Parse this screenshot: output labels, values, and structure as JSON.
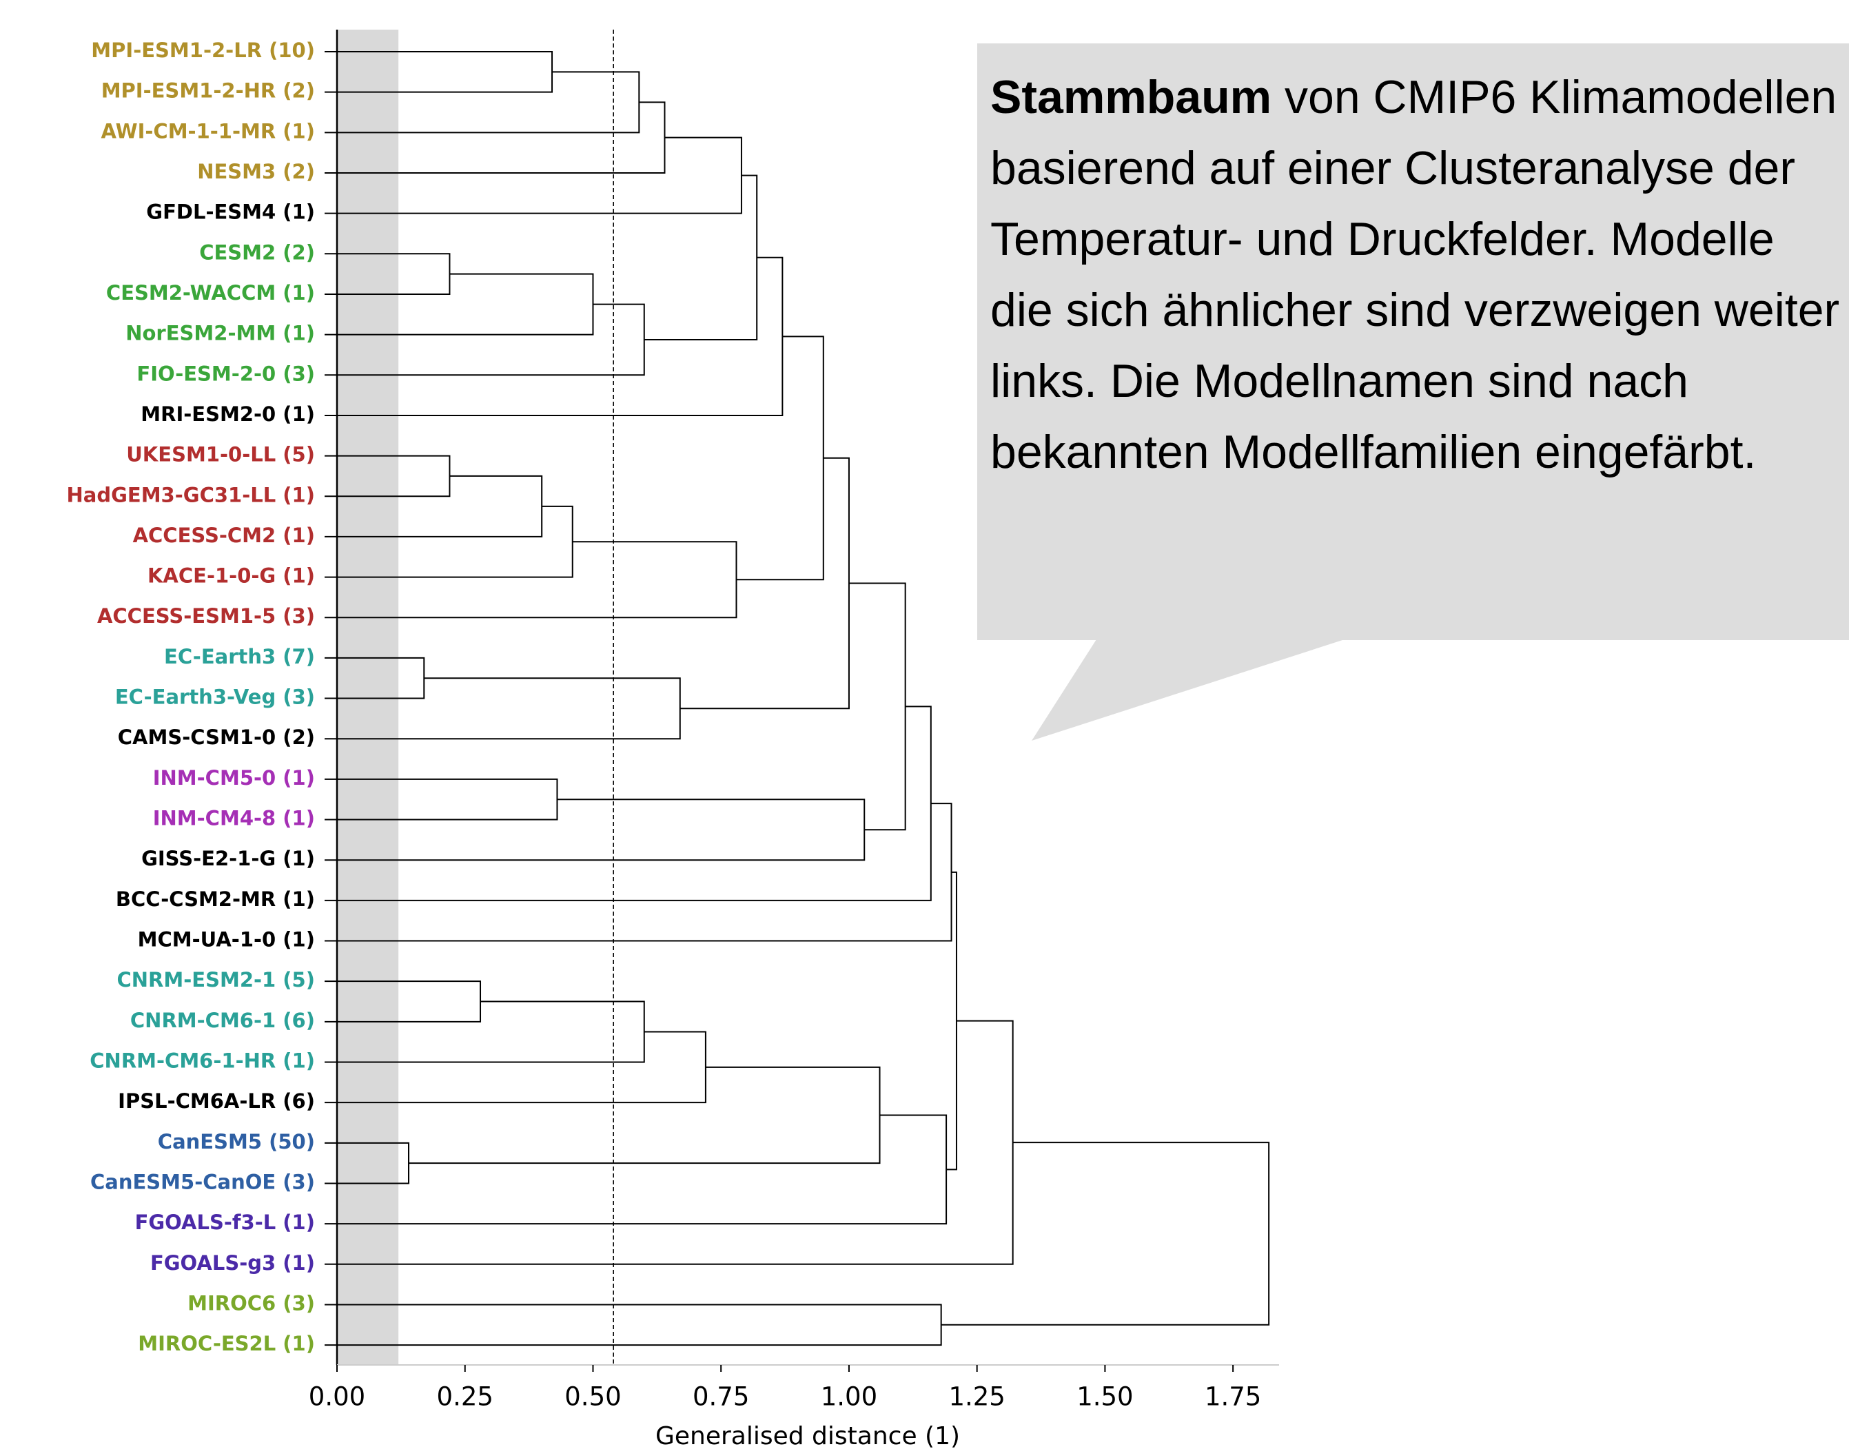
{
  "chart_data": {
    "type": "dendrogram",
    "orientation": "left",
    "xlabel": "Generalised distance (1)",
    "xlim": [
      0,
      1.84
    ],
    "xticks": [
      {
        "value": 0,
        "label": "0.00"
      },
      {
        "value": 0.25,
        "label": "0.25"
      },
      {
        "value": 0.5,
        "label": "0.50"
      },
      {
        "value": 0.75,
        "label": "0.75"
      },
      {
        "value": 1.0,
        "label": "1.00"
      },
      {
        "value": 1.25,
        "label": "1.25"
      },
      {
        "value": 1.5,
        "label": "1.50"
      },
      {
        "value": 1.75,
        "label": "1.75"
      }
    ],
    "shaded_until": 0.12,
    "shade_color": "#d9d9d9",
    "threshold": 0.54,
    "link_color": "#000000",
    "tree": {
      "height": 1.82,
      "children": [
        {
          "height": 1.32,
          "children": [
            {
              "height": 1.21,
              "children": [
                {
                  "height": 1.2,
                  "children": [
                    {
                      "height": 1.16,
                      "children": [
                        {
                          "height": 1.11,
                          "children": [
                            {
                              "height": 1.0,
                              "children": [
                                {
                                  "height": 0.95,
                                  "children": [
                                    {
                                      "height": 0.87,
                                      "children": [
                                        {
                                          "height": 0.82,
                                          "children": [
                                            {
                                              "height": 0.79,
                                              "children": [
                                                {
                                                  "height": 0.64,
                                                  "children": [
                                                    {
                                                      "height": 0.59,
                                                      "children": [
                                                        {
                                                          "height": 0.42,
                                                          "children": [
                                                            {
                                                              "label": "MPI-ESM1-2-LR (10)",
                                                              "color": "#b0902a"
                                                            },
                                                            {
                                                              "label": "MPI-ESM1-2-HR (2)",
                                                              "color": "#b0902a"
                                                            }
                                                          ]
                                                        },
                                                        {
                                                          "label": "AWI-CM-1-1-MR (1)",
                                                          "color": "#b0902a"
                                                        }
                                                      ]
                                                    },
                                                    {
                                                      "label": "NESM3 (2)",
                                                      "color": "#b0902a"
                                                    }
                                                  ]
                                                },
                                                {
                                                  "label": "GFDL-ESM4 (1)",
                                                  "color": "#000000"
                                                }
                                              ]
                                            },
                                            {
                                              "height": 0.6,
                                              "children": [
                                                {
                                                  "height": 0.5,
                                                  "children": [
                                                    {
                                                      "height": 0.22,
                                                      "children": [
                                                        {
                                                          "label": "CESM2 (2)",
                                                          "color": "#3aa63a"
                                                        },
                                                        {
                                                          "label": "CESM2-WACCM (1)",
                                                          "color": "#3aa63a"
                                                        }
                                                      ]
                                                    },
                                                    {
                                                      "label": "NorESM2-MM (1)",
                                                      "color": "#3aa63a"
                                                    }
                                                  ]
                                                },
                                                {
                                                  "label": "FIO-ESM-2-0 (3)",
                                                  "color": "#3aa63a"
                                                }
                                              ]
                                            }
                                          ]
                                        },
                                        {
                                          "label": "MRI-ESM2-0 (1)",
                                          "color": "#000000"
                                        }
                                      ]
                                    },
                                    {
                                      "height": 0.78,
                                      "children": [
                                        {
                                          "height": 0.46,
                                          "children": [
                                            {
                                              "height": 0.4,
                                              "children": [
                                                {
                                                  "height": 0.22,
                                                  "children": [
                                                    {
                                                      "label": "UKESM1-0-LL (5)",
                                                      "color": "#b22e2e"
                                                    },
                                                    {
                                                      "label": "HadGEM3-GC31-LL (1)",
                                                      "color": "#b22e2e"
                                                    }
                                                  ]
                                                },
                                                {
                                                  "label": "ACCESS-CM2 (1)",
                                                  "color": "#b22e2e"
                                                }
                                              ]
                                            },
                                            {
                                              "label": "KACE-1-0-G (1)",
                                              "color": "#b22e2e"
                                            }
                                          ]
                                        },
                                        {
                                          "label": "ACCESS-ESM1-5 (3)",
                                          "color": "#b22e2e"
                                        }
                                      ]
                                    }
                                  ]
                                },
                                {
                                  "height": 0.67,
                                  "children": [
                                    {
                                      "height": 0.17,
                                      "children": [
                                        {
                                          "label": "EC-Earth3 (7)",
                                          "color": "#2aa198"
                                        },
                                        {
                                          "label": "EC-Earth3-Veg (3)",
                                          "color": "#2aa198"
                                        }
                                      ]
                                    },
                                    {
                                      "label": "CAMS-CSM1-0 (2)",
                                      "color": "#000000"
                                    }
                                  ]
                                }
                              ]
                            },
                            {
                              "height": 1.03,
                              "children": [
                                {
                                  "height": 0.43,
                                  "children": [
                                    {
                                      "label": "INM-CM5-0 (1)",
                                      "color": "#a52fb5"
                                    },
                                    {
                                      "label": "INM-CM4-8 (1)",
                                      "color": "#a52fb5"
                                    }
                                  ]
                                },
                                {
                                  "label": "GISS-E2-1-G (1)",
                                  "color": "#000000"
                                }
                              ]
                            }
                          ]
                        },
                        {
                          "label": "BCC-CSM2-MR (1)",
                          "color": "#000000"
                        }
                      ]
                    },
                    {
                      "label": "MCM-UA-1-0 (1)",
                      "color": "#000000"
                    }
                  ]
                },
                {
                  "height": 1.19,
                  "children": [
                    {
                      "height": 1.06,
                      "children": [
                        {
                          "height": 0.72,
                          "children": [
                            {
                              "height": 0.6,
                              "children": [
                                {
                                  "height": 0.28,
                                  "children": [
                                    {
                                      "label": "CNRM-ESM2-1 (5)",
                                      "color": "#2aa198"
                                    },
                                    {
                                      "label": "CNRM-CM6-1 (6)",
                                      "color": "#2aa198"
                                    }
                                  ]
                                },
                                {
                                  "label": "CNRM-CM6-1-HR (1)",
                                  "color": "#2aa198"
                                }
                              ]
                            },
                            {
                              "label": "IPSL-CM6A-LR (6)",
                              "color": "#000000"
                            }
                          ]
                        },
                        {
                          "height": 0.14,
                          "children": [
                            {
                              "label": "CanESM5 (50)",
                              "color": "#2e5fa3"
                            },
                            {
                              "label": "CanESM5-CanOE (3)",
                              "color": "#2e5fa3"
                            }
                          ]
                        }
                      ]
                    },
                    {
                      "label": "FGOALS-f3-L (1)",
                      "color": "#4b2aa8"
                    }
                  ]
                }
              ]
            },
            {
              "label": "FGOALS-g3 (1)",
              "color": "#4b2aa8"
            }
          ]
        },
        {
          "height": 1.18,
          "children": [
            {
              "label": "MIROC6 (3)",
              "color": "#7aa82a"
            },
            {
              "label": "MIROC-ES2L (1)",
              "color": "#7aa82a"
            }
          ]
        }
      ]
    }
  },
  "callout": {
    "bold": "Stammbaum",
    "text": "von CMIP6 Klimamodellen basierend auf einer Clusteranalyse der Temperatur- und Druckfelder. Modelle die sich ähnlicher sind verzweigen weiter links. Die Modellnamen sind nach bekannten Modellfamilien eingefärbt.",
    "background": "#dddddd"
  }
}
